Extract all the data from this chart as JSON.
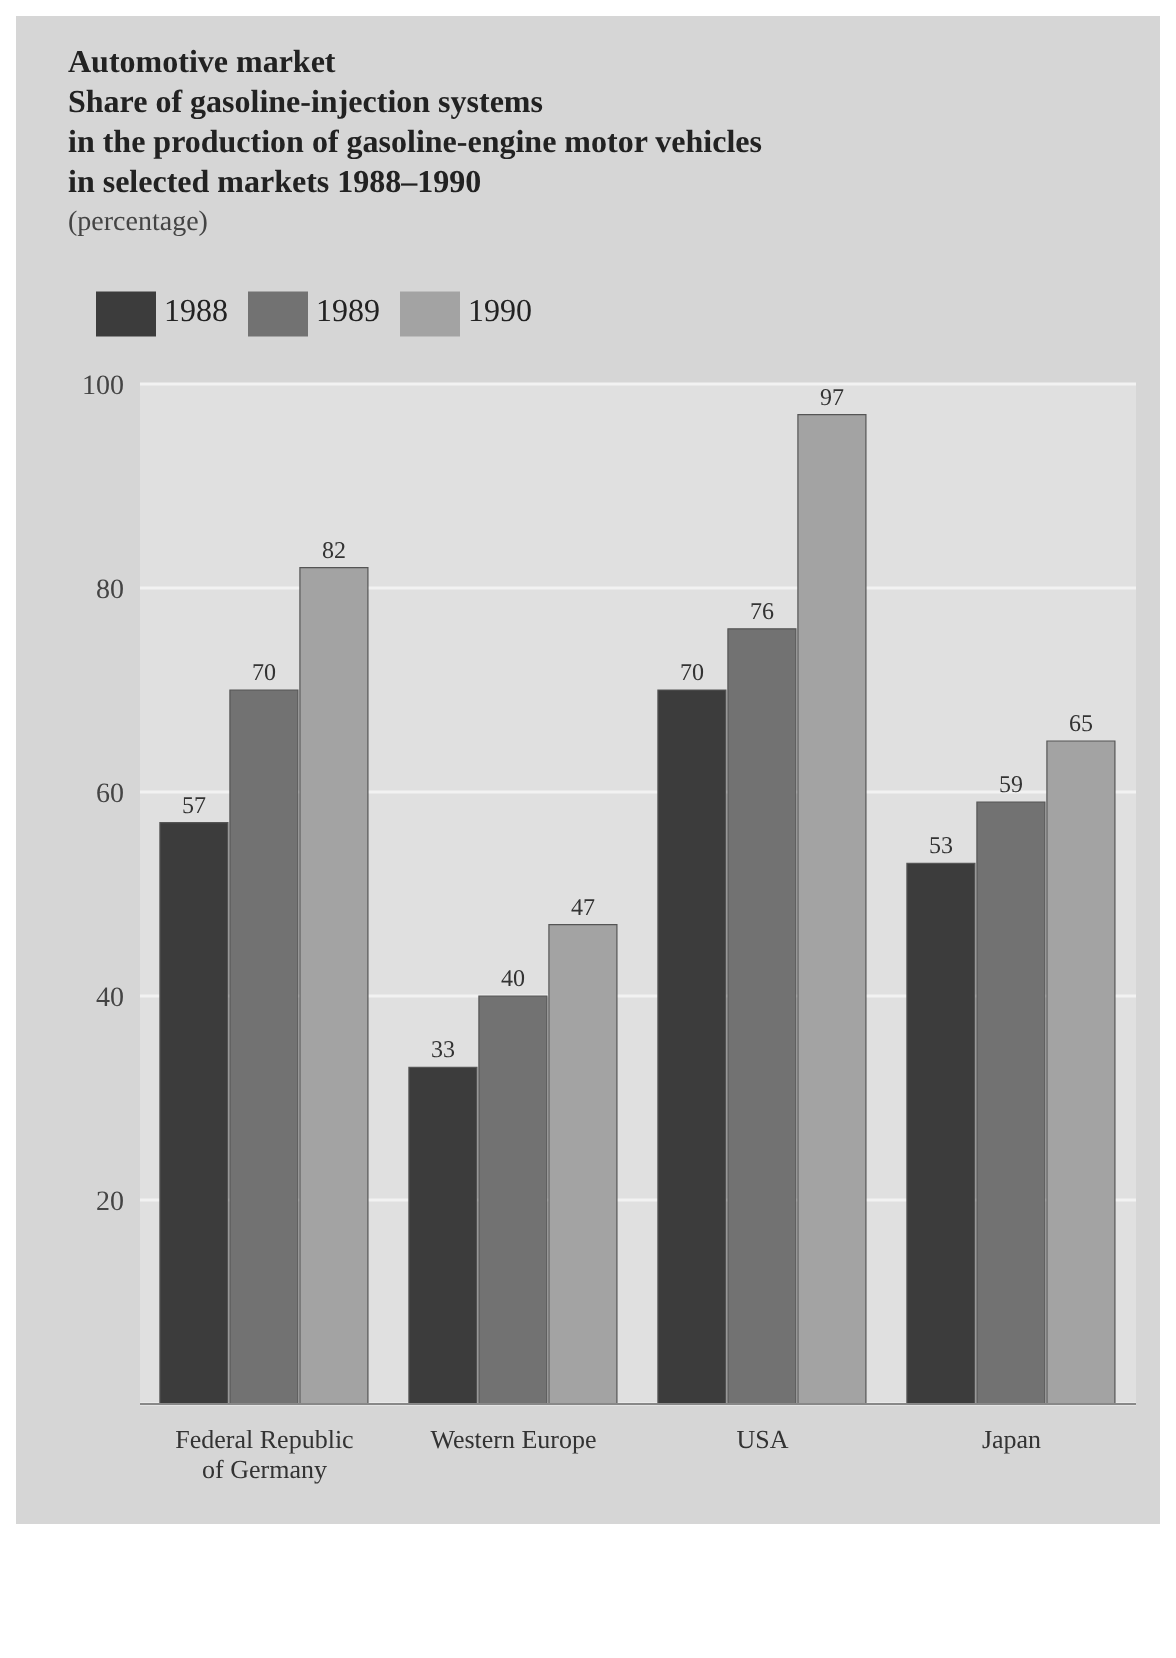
{
  "chart_data": {
    "type": "bar",
    "title": "Automotive market",
    "subtitle": "Share of gasoline-injection systems\nin the production of gasoline-engine motor vehicles\nin selected markets 1988–1990",
    "ylabel": "(percentage)",
    "categories": [
      "Federal Republic of Germany",
      "Western Europe",
      "USA",
      "Japan"
    ],
    "series": [
      {
        "name": "1988",
        "color": "#3c3c3c",
        "values": [
          57,
          33,
          70,
          53
        ]
      },
      {
        "name": "1989",
        "color": "#727272",
        "values": [
          70,
          40,
          76,
          59
        ]
      },
      {
        "name": "1990",
        "color": "#a3a3a3",
        "values": [
          82,
          47,
          97,
          65
        ]
      }
    ],
    "ylim": [
      0,
      100
    ],
    "yticks": [
      20,
      40,
      60,
      80,
      100
    ],
    "grid": "y",
    "legend": "top left",
    "data_labels": true
  }
}
